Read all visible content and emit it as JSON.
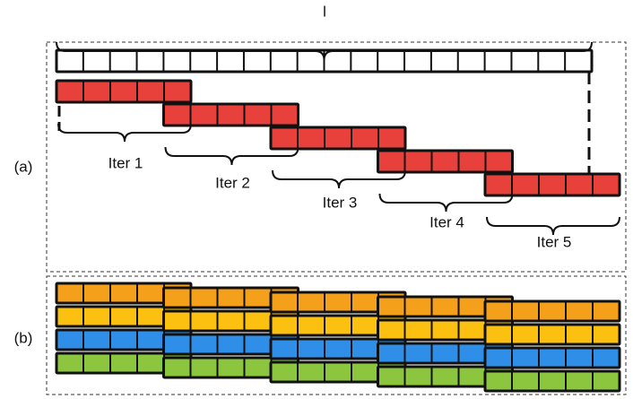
{
  "top_label": "l",
  "panel_a": {
    "label": "(a)",
    "iterations": [
      "Iter 1",
      "Iter 2",
      "Iter 3",
      "Iter 4",
      "Iter 5"
    ]
  },
  "panel_b": {
    "label": "(b)"
  }
}
